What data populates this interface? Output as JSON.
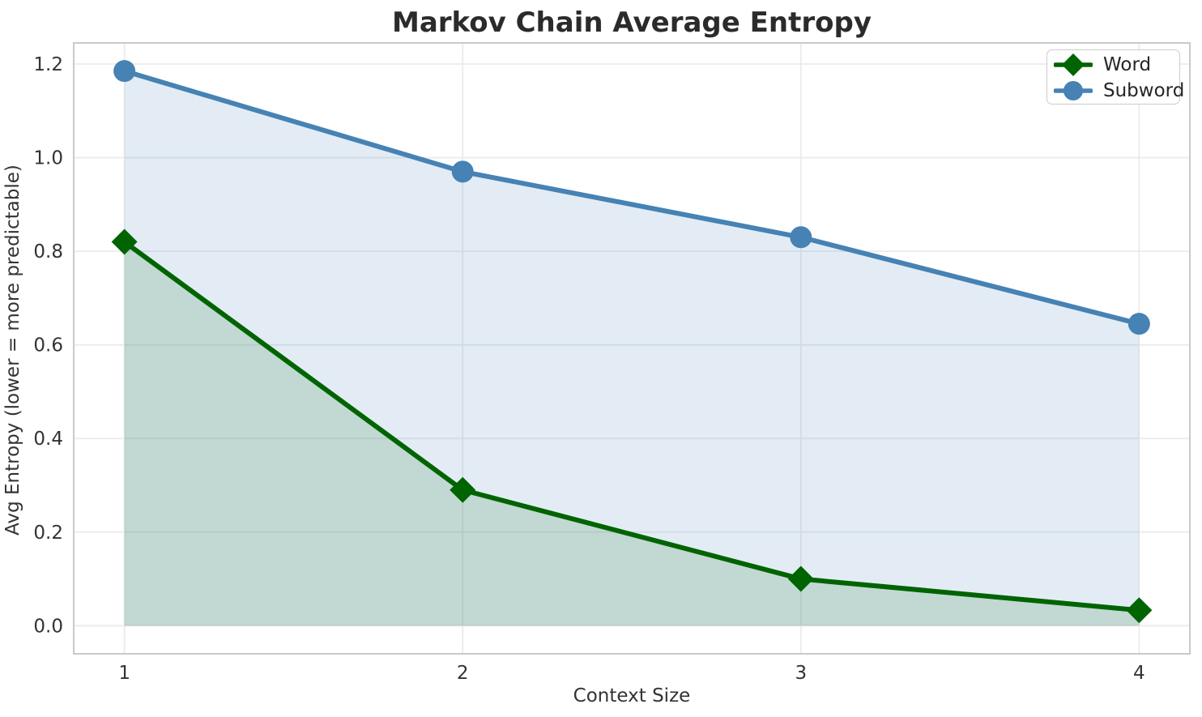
{
  "figure": {
    "title": "Markov Chain Average Entropy",
    "xlabel": "Context Size",
    "ylabel": "Avg Entropy (lower = more predictable)"
  },
  "chart_data": {
    "type": "line",
    "title": "Markov Chain Average Entropy",
    "xlabel": "Context Size",
    "ylabel": "Avg Entropy (lower = more predictable)",
    "x": [
      1,
      2,
      3,
      4
    ],
    "series": [
      {
        "name": "Word",
        "color": "#006400",
        "marker": "diamond",
        "fill_to_zero": true,
        "values": [
          0.82,
          0.29,
          0.1,
          0.033
        ]
      },
      {
        "name": "Subword",
        "color": "#4682b4",
        "marker": "circle",
        "fill_to_zero": true,
        "values": [
          1.185,
          0.97,
          0.83,
          0.645
        ]
      }
    ],
    "xlim": [
      0.85,
      4.15
    ],
    "ylim": [
      -0.06,
      1.245
    ],
    "xticks": {
      "values": [
        1,
        2,
        3,
        4
      ],
      "labels": [
        "1",
        "2",
        "3",
        "4"
      ]
    },
    "yticks": {
      "values": [
        0.0,
        0.2,
        0.4,
        0.6,
        0.8,
        1.0,
        1.2
      ],
      "labels": [
        "0.0",
        "0.2",
        "0.4",
        "0.6",
        "0.8",
        "1.0",
        "1.2"
      ]
    },
    "grid": true,
    "legend_position": "upper right",
    "fill_opacity": 0.15,
    "line_width": 6,
    "colors": {
      "grid": "#ebebeb",
      "spine": "#c9c9c9",
      "tick_text": "#333333",
      "title_text": "#2b2b2b"
    }
  }
}
